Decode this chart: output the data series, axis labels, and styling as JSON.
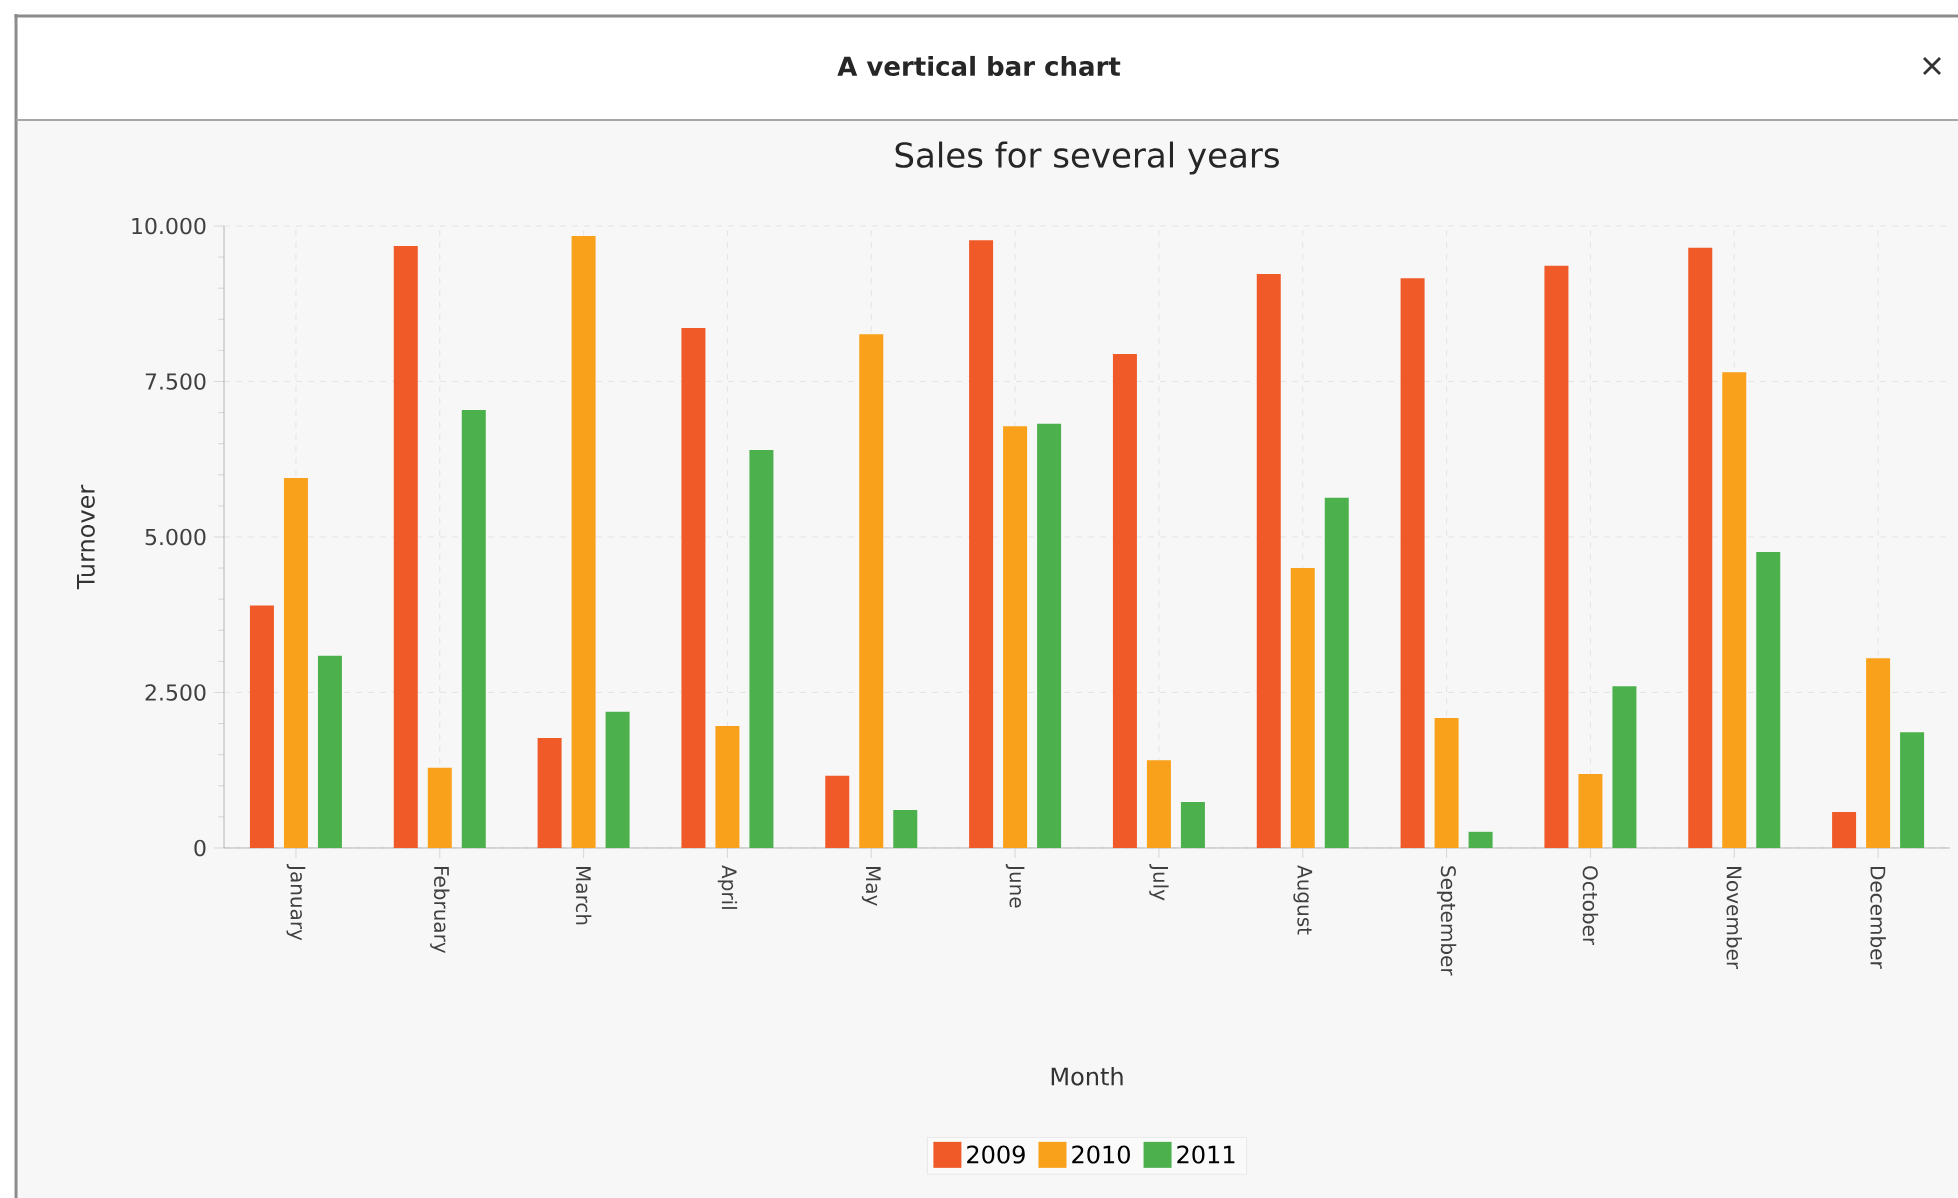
{
  "chart_data": {
    "type": "bar",
    "title": "A vertical bar chart",
    "subtitle": "Sales for several years",
    "xlabel": "Month",
    "ylabel": "Turnover",
    "categories": [
      "January",
      "February",
      "March",
      "April",
      "May",
      "June",
      "July",
      "August",
      "September",
      "October",
      "November",
      "December"
    ],
    "series": [
      {
        "name": "2009",
        "color": "#f05a28",
        "values": [
          3900,
          9680,
          1770,
          8360,
          1160,
          9770,
          7940,
          9230,
          9160,
          9360,
          9650,
          580
        ]
      },
      {
        "name": "2010",
        "color": "#f9a11b",
        "values": [
          5950,
          1290,
          9840,
          1960,
          8260,
          6780,
          1410,
          4500,
          2090,
          1190,
          7650,
          3050
        ]
      },
      {
        "name": "2011",
        "color": "#4cb04c",
        "values": [
          3090,
          7040,
          2190,
          6400,
          610,
          6820,
          740,
          5630,
          260,
          2600,
          4760,
          1860
        ]
      }
    ],
    "ylim": [
      0,
      10000
    ],
    "yticks": [
      {
        "value": 0,
        "label": "0"
      },
      {
        "value": 2500,
        "label": "2.500"
      },
      {
        "value": 5000,
        "label": "5.000"
      },
      {
        "value": 7500,
        "label": "7.500"
      },
      {
        "value": 10000,
        "label": "10.000"
      }
    ],
    "grid": true,
    "legend": "bottom"
  }
}
